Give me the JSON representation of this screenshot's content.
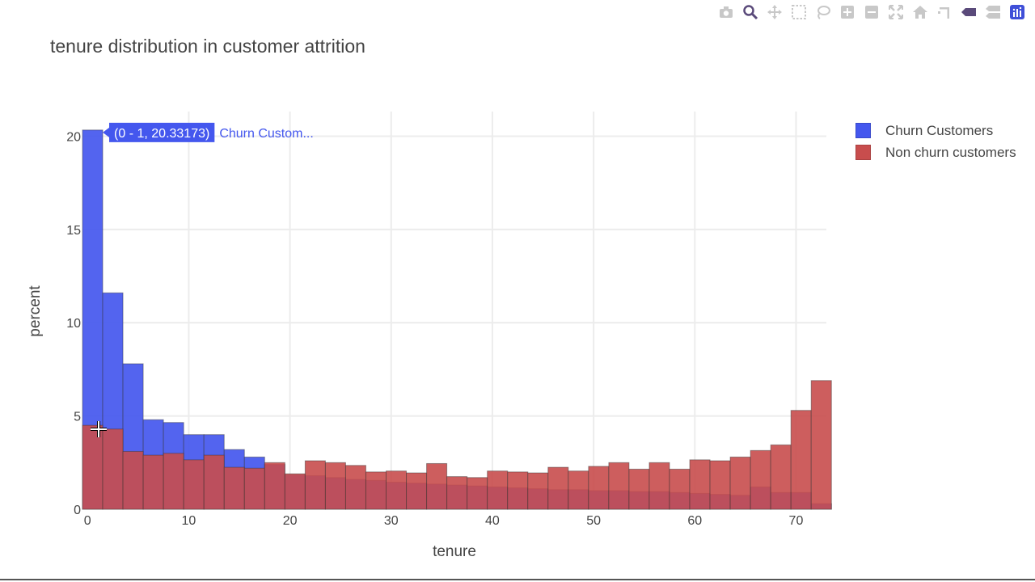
{
  "chart_data": {
    "type": "bar",
    "barmode": "overlay",
    "title": "tenure distribution in customer attrition",
    "xlabel": "tenure",
    "ylabel": "percent",
    "xlim": [
      -0.5,
      73
    ],
    "ylim": [
      0,
      20.8
    ],
    "xticks": [
      0,
      10,
      20,
      30,
      40,
      50,
      60,
      70
    ],
    "yticks": [
      0,
      5,
      10,
      15,
      20
    ],
    "grid": true,
    "legend_position": "top-right",
    "bin_width": 2,
    "bin_starts": [
      -0.5,
      1.5,
      3.5,
      5.5,
      7.5,
      9.5,
      11.5,
      13.5,
      15.5,
      17.5,
      19.5,
      21.5,
      23.5,
      25.5,
      27.5,
      29.5,
      31.5,
      33.5,
      35.5,
      37.5,
      39.5,
      41.5,
      43.5,
      45.5,
      47.5,
      49.5,
      51.5,
      53.5,
      55.5,
      57.5,
      59.5,
      61.5,
      63.5,
      65.5,
      67.5,
      69.5,
      71.5
    ],
    "series": [
      {
        "name": "Churn Customers",
        "color": "#4457ee",
        "values": [
          20.33,
          11.6,
          7.8,
          4.8,
          4.65,
          4.0,
          4.0,
          3.2,
          2.8,
          2.4,
          1.85,
          1.8,
          1.7,
          1.6,
          1.55,
          1.45,
          1.4,
          1.35,
          1.3,
          1.25,
          1.2,
          1.15,
          1.1,
          1.05,
          1.05,
          1.0,
          1.0,
          0.95,
          0.95,
          0.9,
          0.85,
          0.8,
          0.75,
          1.2,
          0.9,
          0.9,
          0.3
        ]
      },
      {
        "name": "Non churn customers",
        "color": "#c84d4d",
        "values": [
          4.5,
          4.3,
          3.1,
          2.9,
          3.0,
          2.65,
          2.9,
          2.25,
          2.2,
          2.5,
          1.9,
          2.6,
          2.5,
          2.35,
          2.0,
          2.05,
          1.95,
          2.45,
          1.75,
          1.7,
          2.05,
          2.0,
          1.95,
          2.25,
          2.05,
          2.3,
          2.5,
          2.15,
          2.5,
          2.15,
          2.65,
          2.6,
          2.8,
          3.15,
          3.45,
          5.3,
          6.9
        ]
      }
    ],
    "hover": {
      "text": "(0 - 1, 20.33173)",
      "series_label": "Churn Custom...",
      "bin_index": 0
    }
  },
  "modebar": {
    "buttons": [
      "camera-icon",
      "zoom-icon",
      "pan-icon",
      "box-select-icon",
      "lasso-icon",
      "zoom-in-icon",
      "zoom-out-icon",
      "autoscale-icon",
      "reset-axes-icon",
      "spike-lines-icon",
      "hover-closest-icon",
      "hover-compare-icon",
      "plotly-logo-icon"
    ]
  }
}
